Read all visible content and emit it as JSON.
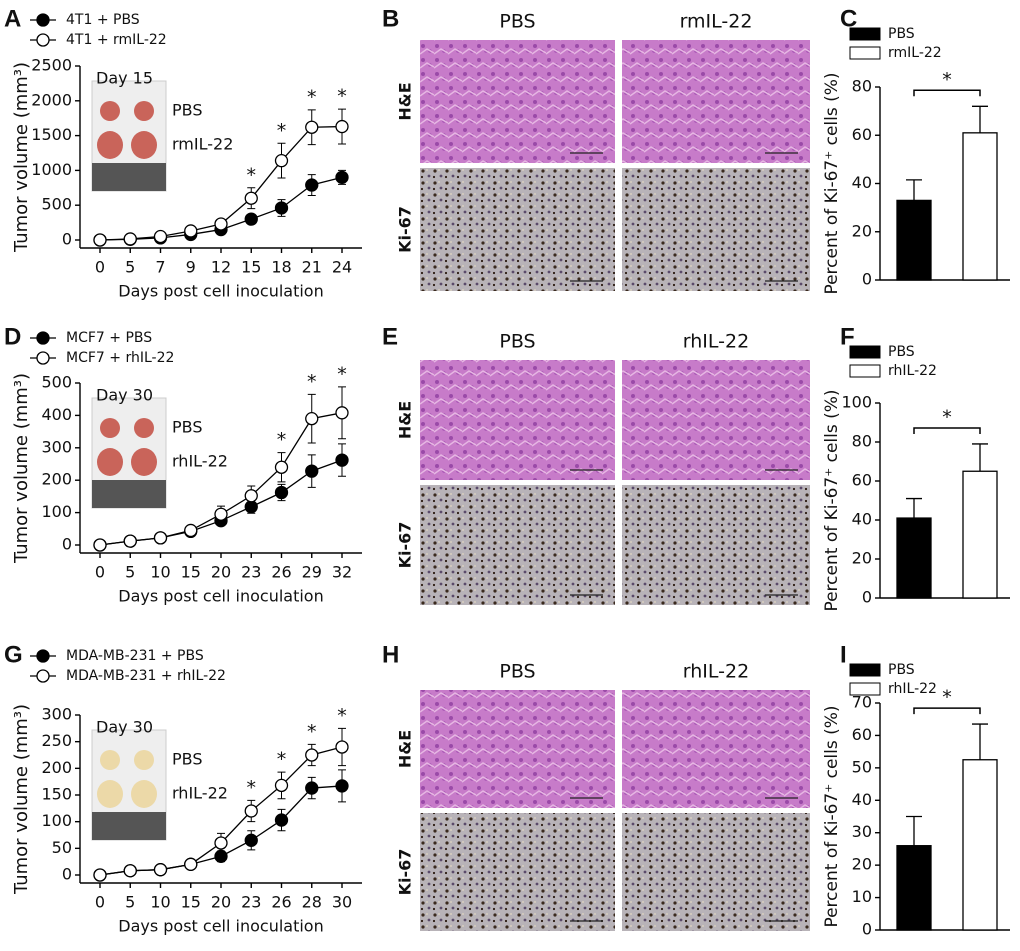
{
  "chart_data": [
    {
      "type": "line",
      "panel": "A",
      "x_label": "Days post cell inoculation",
      "y_label": "Tumor volume (mm³)",
      "categories": [
        "0",
        "5",
        "7",
        "9",
        "12",
        "15",
        "18",
        "21",
        "24"
      ],
      "series": [
        {
          "name": "4T1 + PBS",
          "color": "#000000",
          "values": [
            0,
            10,
            30,
            80,
            150,
            300,
            460,
            790,
            900
          ],
          "errors": [
            0,
            5,
            10,
            20,
            30,
            50,
            120,
            150,
            100
          ]
        },
        {
          "name": "4T1 + rmIL-22",
          "color": "#ffffff",
          "values": [
            0,
            15,
            50,
            130,
            230,
            600,
            1140,
            1620,
            1630
          ],
          "errors": [
            0,
            5,
            15,
            30,
            50,
            150,
            250,
            250,
            250
          ]
        }
      ],
      "ylim": [
        0,
        2500
      ],
      "yticks": [
        0,
        500,
        1000,
        1500,
        2000,
        2500
      ],
      "annotations": [
        {
          "x": "15",
          "text": "*"
        },
        {
          "x": "18",
          "text": "*"
        },
        {
          "x": "21",
          "text": "*"
        },
        {
          "x": "24",
          "text": "*"
        }
      ],
      "inset": {
        "title": "Day 15",
        "labels": [
          "PBS",
          "rmIL-22"
        ]
      }
    },
    {
      "type": "bar",
      "panel": "C",
      "y_label": "Percent of Ki-67⁺ cells (%)",
      "categories": [
        "PBS",
        "rmIL-22"
      ],
      "colors": [
        "#000000",
        "#ffffff"
      ],
      "values": [
        33,
        61
      ],
      "errors": [
        8.5,
        11
      ],
      "ylim": [
        0,
        80
      ],
      "yticks": [
        0,
        20,
        40,
        60,
        80
      ],
      "annotation": "*"
    },
    {
      "type": "line",
      "panel": "D",
      "x_label": "Days post cell inoculation",
      "y_label": "Tumor volume (mm³)",
      "categories": [
        "0",
        "5",
        "10",
        "15",
        "20",
        "23",
        "26",
        "29",
        "32"
      ],
      "series": [
        {
          "name": "MCF7 + PBS",
          "color": "#000000",
          "values": [
            0,
            12,
            22,
            42,
            75,
            118,
            162,
            228,
            262
          ],
          "errors": [
            0,
            3,
            5,
            8,
            12,
            20,
            25,
            50,
            50
          ]
        },
        {
          "name": "MCF7 + rhIL-22",
          "color": "#ffffff",
          "values": [
            0,
            12,
            22,
            45,
            95,
            152,
            240,
            390,
            408
          ],
          "errors": [
            0,
            3,
            5,
            8,
            25,
            30,
            45,
            75,
            80
          ]
        }
      ],
      "ylim": [
        0,
        500
      ],
      "yticks": [
        0,
        100,
        200,
        300,
        400,
        500
      ],
      "annotations": [
        {
          "x": "26",
          "text": "*"
        },
        {
          "x": "29",
          "text": "*"
        },
        {
          "x": "32",
          "text": "*"
        }
      ],
      "inset": {
        "title": "Day 30",
        "labels": [
          "PBS",
          "rhIL-22"
        ]
      }
    },
    {
      "type": "bar",
      "panel": "F",
      "y_label": "Percent of Ki-67⁺ cells (%)",
      "categories": [
        "PBS",
        "rhIL-22"
      ],
      "colors": [
        "#000000",
        "#ffffff"
      ],
      "values": [
        41,
        65
      ],
      "errors": [
        10,
        14
      ],
      "ylim": [
        0,
        100
      ],
      "yticks": [
        0,
        20,
        40,
        60,
        80,
        100
      ],
      "annotation": "*"
    },
    {
      "type": "line",
      "panel": "G",
      "x_label": "Days post cell inoculation",
      "y_label": "Tumor volume (mm³)",
      "categories": [
        "0",
        "5",
        "10",
        "15",
        "20",
        "23",
        "26",
        "28",
        "30"
      ],
      "series": [
        {
          "name": "MDA-MB-231 + PBS",
          "color": "#000000",
          "values": [
            0,
            8,
            10,
            20,
            35,
            65,
            103,
            163,
            167
          ],
          "errors": [
            0,
            3,
            3,
            5,
            10,
            18,
            20,
            20,
            30
          ]
        },
        {
          "name": "MDA-MB-231 + rhIL-22",
          "color": "#ffffff",
          "values": [
            0,
            8,
            10,
            20,
            60,
            120,
            168,
            225,
            240
          ],
          "errors": [
            0,
            3,
            3,
            5,
            18,
            20,
            25,
            20,
            35
          ]
        }
      ],
      "ylim": [
        0,
        300
      ],
      "yticks": [
        0,
        50,
        100,
        150,
        200,
        250,
        300
      ],
      "annotations": [
        {
          "x": "23",
          "text": "*"
        },
        {
          "x": "26",
          "text": "*"
        },
        {
          "x": "28",
          "text": "*"
        },
        {
          "x": "30",
          "text": "*"
        }
      ],
      "inset": {
        "title": "Day 30",
        "labels": [
          "PBS",
          "rhIL-22"
        ]
      }
    },
    {
      "type": "bar",
      "panel": "I",
      "y_label": "Percent of Ki-67⁺ cells (%)",
      "categories": [
        "PBS",
        "rhIL-22"
      ],
      "colors": [
        "#000000",
        "#ffffff"
      ],
      "values": [
        26,
        52.5
      ],
      "errors": [
        9,
        11
      ],
      "ylim": [
        0,
        70
      ],
      "yticks": [
        0,
        10,
        20,
        30,
        40,
        50,
        60,
        70
      ],
      "annotation": "*"
    }
  ],
  "image_panels": [
    {
      "panel": "B",
      "columns": [
        "PBS",
        "rmIL-22"
      ],
      "rows": [
        "H&E",
        "Ki-67"
      ]
    },
    {
      "panel": "E",
      "columns": [
        "PBS",
        "rhIL-22"
      ],
      "rows": [
        "H&E",
        "Ki-67"
      ]
    },
    {
      "panel": "H",
      "columns": [
        "PBS",
        "rhIL-22"
      ],
      "rows": [
        "H&E",
        "Ki-67"
      ]
    }
  ]
}
